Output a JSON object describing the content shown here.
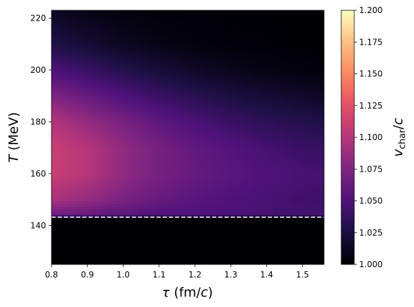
{
  "chart_data": {
    "type": "heatmap",
    "xlabel": {
      "symbol": "τ",
      "unit_open": " (fm/",
      "unit_var": "c",
      "unit_close": ")"
    },
    "ylabel": {
      "symbol": "T",
      "unit": " (MeV)"
    },
    "colorbar_label": {
      "base": "v",
      "sub": "char",
      "slash": "/",
      "var": "c"
    },
    "xlim": [
      0.8,
      1.56
    ],
    "ylim": [
      125,
      223
    ],
    "x_ticks": [
      0.8,
      0.9,
      1.0,
      1.1,
      1.2,
      1.3,
      1.4,
      1.5
    ],
    "x_tick_labels": [
      "0.8",
      "0.9",
      "1.0",
      "1.1",
      "1.2",
      "1.3",
      "1.4",
      "1.5"
    ],
    "y_ticks": [
      140,
      160,
      180,
      200,
      220
    ],
    "y_tick_labels": [
      "140",
      "160",
      "180",
      "200",
      "220"
    ],
    "colorbar_range": [
      1.0,
      1.2
    ],
    "colorbar_ticks": [
      1.0,
      1.025,
      1.05,
      1.075,
      1.1,
      1.125,
      1.15,
      1.175,
      1.2
    ],
    "colorbar_tick_labels": [
      "1.000",
      "1.025",
      "1.050",
      "1.075",
      "1.100",
      "1.125",
      "1.150",
      "1.175",
      "1.200"
    ],
    "colormap": "magma",
    "threshold_line": {
      "y": 143.2,
      "style": "dashed",
      "color": "#ffffff"
    },
    "values": {
      "tau": [
        0.8,
        0.9,
        1.0,
        1.1,
        1.2,
        1.3,
        1.4,
        1.5,
        1.56
      ],
      "T": [
        125,
        143,
        144,
        150,
        160,
        170,
        180,
        190,
        200,
        210,
        223
      ],
      "v_over_c": [
        [
          1.0,
          1.0,
          1.0,
          1.0,
          1.0,
          1.0,
          1.0,
          1.0,
          1.0
        ],
        [
          1.0,
          1.0,
          1.0,
          1.0,
          1.0,
          1.0,
          1.0,
          1.0,
          1.0
        ],
        [
          1.065,
          1.06,
          1.055,
          1.05,
          1.05,
          1.048,
          1.046,
          1.045,
          1.045
        ],
        [
          1.095,
          1.085,
          1.072,
          1.062,
          1.055,
          1.05,
          1.046,
          1.043,
          1.042
        ],
        [
          1.11,
          1.1,
          1.083,
          1.07,
          1.062,
          1.055,
          1.05,
          1.046,
          1.045
        ],
        [
          1.11,
          1.1,
          1.083,
          1.07,
          1.06,
          1.052,
          1.045,
          1.04,
          1.038
        ],
        [
          1.1,
          1.085,
          1.072,
          1.058,
          1.048,
          1.04,
          1.034,
          1.03,
          1.028
        ],
        [
          1.075,
          1.062,
          1.05,
          1.04,
          1.032,
          1.025,
          1.02,
          1.016,
          1.014
        ],
        [
          1.05,
          1.04,
          1.03,
          1.022,
          1.015,
          1.01,
          1.006,
          1.004,
          1.003
        ],
        [
          1.028,
          1.02,
          1.012,
          1.007,
          1.004,
          1.002,
          1.001,
          1.0,
          1.0
        ],
        [
          1.012,
          1.007,
          1.004,
          1.002,
          1.001,
          1.0,
          1.0,
          1.0,
          1.0
        ]
      ]
    }
  }
}
